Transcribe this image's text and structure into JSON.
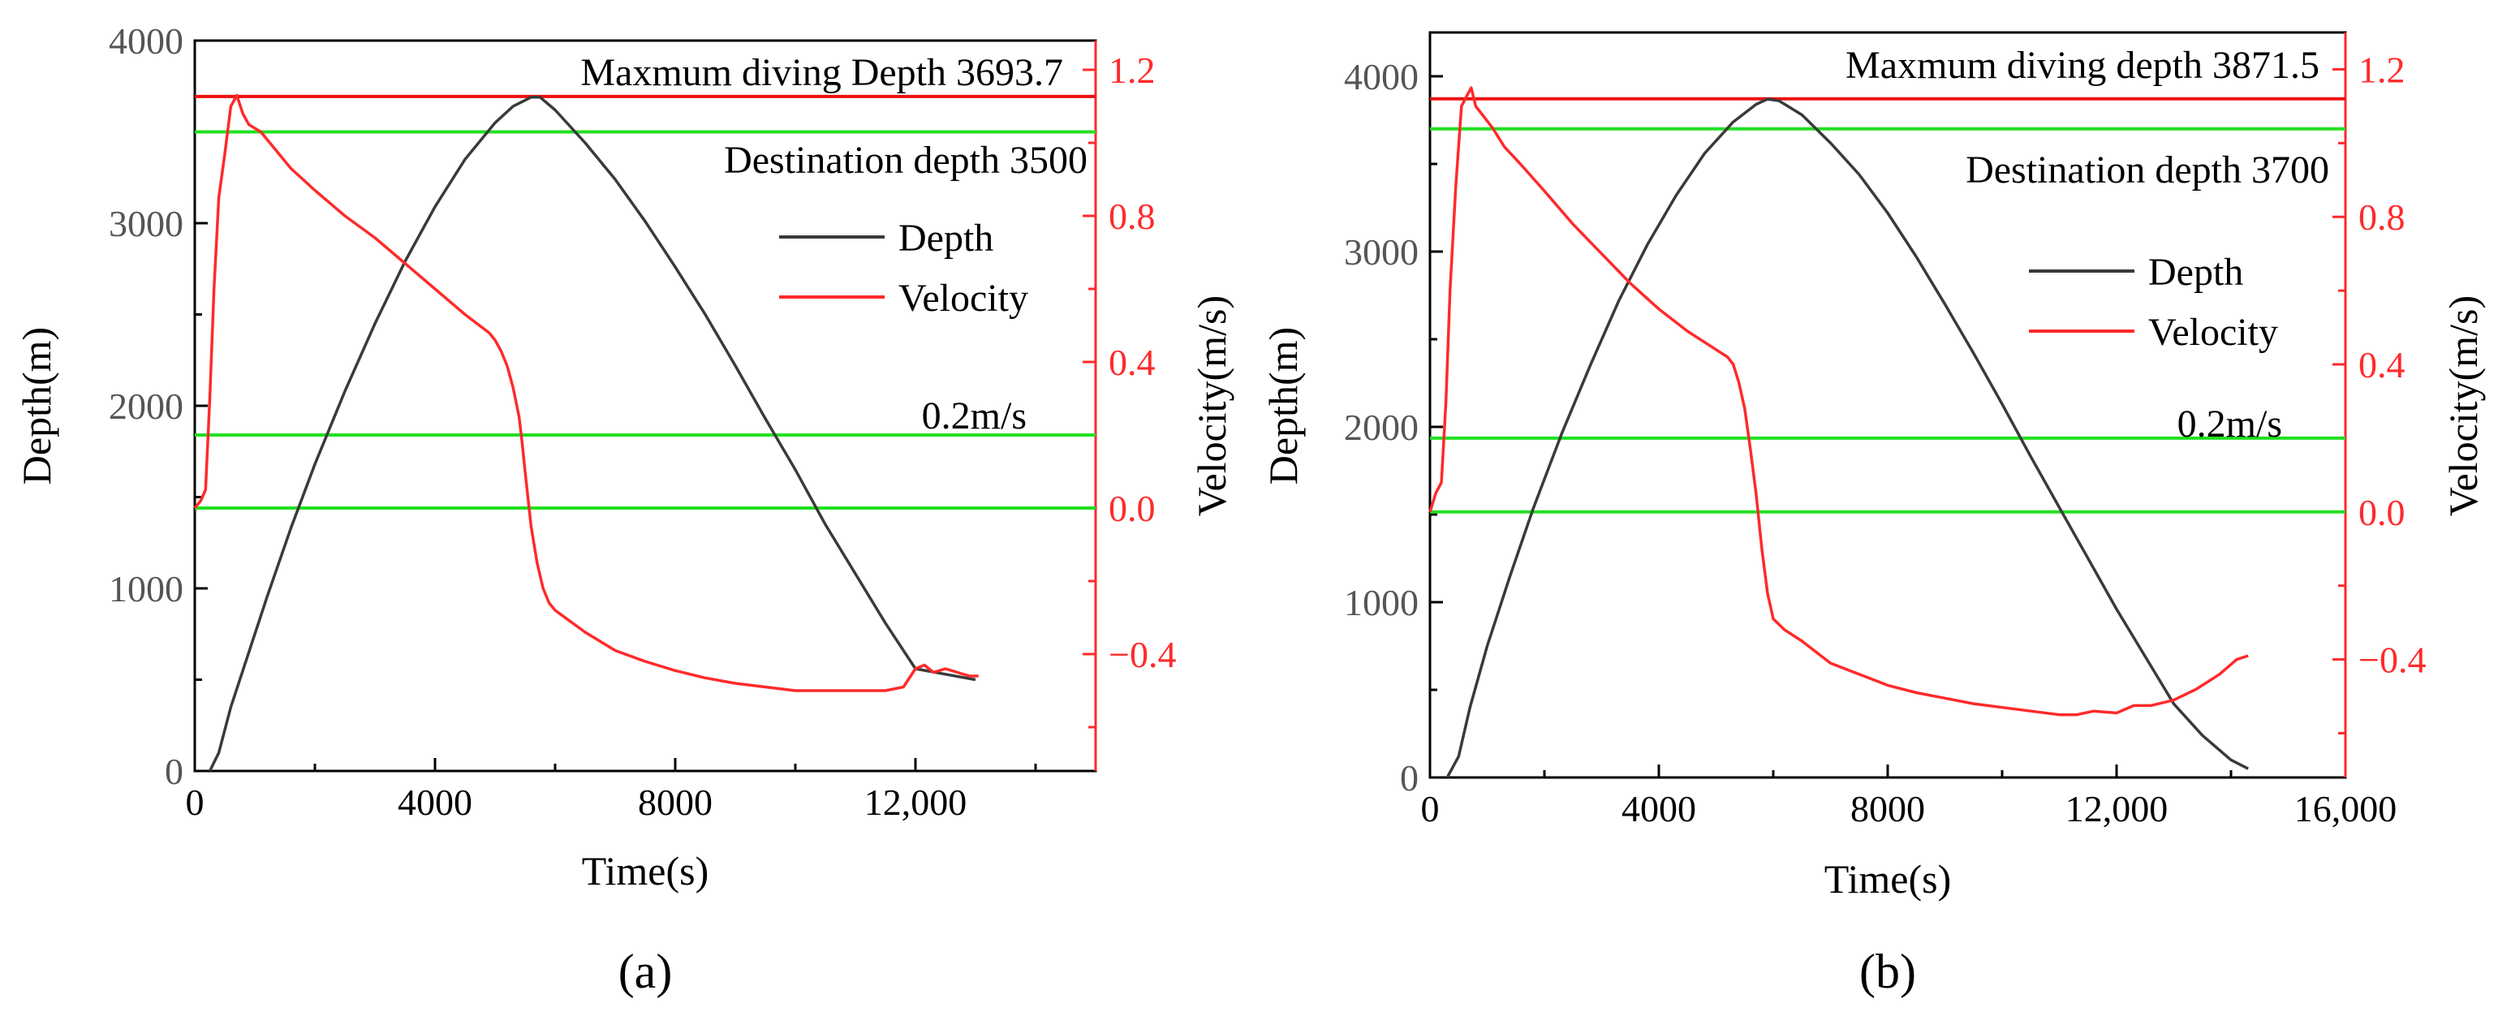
{
  "colors": {
    "depth": "#3a3a3a",
    "velocity": "#ff2a2a",
    "reference": "#22e022",
    "maxline": "#ee1010",
    "axis": "#000000",
    "velocity_axis": "#ff2a2a"
  },
  "chart_data": [
    {
      "type": "line",
      "panel": "(a)",
      "xlabel": "Time(s)",
      "ylabel": "Depth(m)",
      "y2label": "Velocity(m/s)",
      "xlim": [
        0,
        15000
      ],
      "ylim": [
        0,
        4000
      ],
      "y2lim": [
        -0.72,
        1.28
      ],
      "xticks": [
        0,
        4000,
        8000,
        12000
      ],
      "xtick_labels": [
        "0",
        "4000",
        "8000",
        "12,000"
      ],
      "yticks": [
        0,
        1000,
        2000,
        3000,
        4000
      ],
      "ytick_labels": [
        "0",
        "1000",
        "2000",
        "3000",
        "4000"
      ],
      "y2ticks": [
        -0.4,
        0.0,
        0.4,
        0.8,
        1.2
      ],
      "y2tick_labels": [
        "−0.4",
        "0.0",
        "0.4",
        "0.8",
        "1.2"
      ],
      "max_depth": 3693.7,
      "max_depth_label": "Maxmum diving Depth 3693.7",
      "destination_depth": 3500,
      "destination_label": "Destination depth 3500",
      "velocity_ref_lines": [
        0.2,
        0.0
      ],
      "velocity_ref_label": "0.2m/s",
      "legend": [
        "Depth",
        "Velocity"
      ],
      "series": [
        {
          "name": "Depth",
          "axis": "left",
          "x": [
            250,
            400,
            600,
            900,
            1200,
            1600,
            2000,
            2500,
            3000,
            3500,
            4000,
            4500,
            5000,
            5300,
            5600,
            5750,
            6000,
            6500,
            7000,
            7500,
            8000,
            8500,
            9000,
            9500,
            10000,
            10500,
            11000,
            11500,
            12000,
            12500,
            13000
          ],
          "values": [
            0,
            100,
            350,
            650,
            950,
            1330,
            1680,
            2080,
            2450,
            2790,
            3090,
            3350,
            3550,
            3640,
            3690,
            3690,
            3620,
            3440,
            3240,
            3010,
            2760,
            2500,
            2220,
            1930,
            1650,
            1350,
            1080,
            810,
            560,
            530,
            500
          ]
        },
        {
          "name": "Velocity",
          "axis": "right",
          "x": [
            0,
            100,
            180,
            250,
            320,
            400,
            500,
            600,
            700,
            800,
            900,
            1100,
            1300,
            1600,
            2000,
            2500,
            3000,
            3500,
            4000,
            4500,
            4900,
            5000,
            5100,
            5200,
            5300,
            5400,
            5450,
            5500,
            5600,
            5700,
            5800,
            5900,
            6000,
            6500,
            7000,
            7500,
            8000,
            8500,
            9000,
            9500,
            10000,
            10500,
            11000,
            11500,
            11800,
            12000,
            12150,
            12300,
            12500,
            12700,
            12900,
            13050
          ],
          "values": [
            0.0,
            0.02,
            0.05,
            0.3,
            0.6,
            0.85,
            0.97,
            1.1,
            1.13,
            1.08,
            1.05,
            1.03,
            0.99,
            0.93,
            0.87,
            0.8,
            0.74,
            0.67,
            0.6,
            0.53,
            0.48,
            0.46,
            0.43,
            0.39,
            0.33,
            0.25,
            0.18,
            0.1,
            -0.05,
            -0.15,
            -0.22,
            -0.26,
            -0.28,
            -0.34,
            -0.39,
            -0.42,
            -0.445,
            -0.465,
            -0.48,
            -0.49,
            -0.5,
            -0.5,
            -0.5,
            -0.5,
            -0.49,
            -0.44,
            -0.43,
            -0.45,
            -0.44,
            -0.45,
            -0.46,
            -0.46
          ]
        }
      ]
    },
    {
      "type": "line",
      "panel": "(b)",
      "xlabel": "Time(s)",
      "ylabel": "Depth(m)",
      "y2label": "Velocity(m/s)",
      "xlim": [
        0,
        16000
      ],
      "ylim": [
        0,
        4250
      ],
      "y2lim": [
        -0.72,
        1.3
      ],
      "xticks": [
        0,
        4000,
        8000,
        12000,
        16000
      ],
      "xtick_labels": [
        "0",
        "4000",
        "8000",
        "12,000",
        "16,000"
      ],
      "yticks": [
        0,
        1000,
        2000,
        3000,
        4000
      ],
      "ytick_labels": [
        "0",
        "1000",
        "2000",
        "3000",
        "4000"
      ],
      "y2ticks": [
        -0.4,
        0.0,
        0.4,
        0.8,
        1.2
      ],
      "y2tick_labels": [
        "−0.4",
        "0.0",
        "0.4",
        "0.8",
        "1.2"
      ],
      "max_depth": 3871.5,
      "max_depth_label": "Maxmum diving depth 3871.5",
      "destination_depth": 3700,
      "destination_label": "Destination depth 3700",
      "velocity_ref_lines": [
        0.2,
        0.0
      ],
      "velocity_ref_label": "0.2m/s",
      "legend": [
        "Depth",
        "Velocity"
      ],
      "series": [
        {
          "name": "Depth",
          "axis": "left",
          "x": [
            300,
            500,
            700,
            1000,
            1400,
            1800,
            2300,
            2800,
            3300,
            3800,
            4300,
            4800,
            5300,
            5700,
            5900,
            6100,
            6500,
            7000,
            7500,
            8000,
            8500,
            9000,
            9500,
            10000,
            10500,
            11000,
            11500,
            12000,
            12500,
            13000,
            13500,
            14000,
            14300
          ],
          "values": [
            0,
            120,
            400,
            750,
            1150,
            1530,
            1960,
            2350,
            2720,
            3040,
            3320,
            3560,
            3740,
            3840,
            3870,
            3860,
            3780,
            3620,
            3440,
            3220,
            2970,
            2700,
            2420,
            2130,
            1830,
            1540,
            1250,
            960,
            690,
            420,
            240,
            100,
            50
          ]
        },
        {
          "name": "Velocity",
          "axis": "right",
          "x": [
            0,
            100,
            200,
            280,
            350,
            450,
            550,
            650,
            720,
            800,
            900,
            1100,
            1300,
            1600,
            2000,
            2500,
            3000,
            3500,
            4000,
            4500,
            5000,
            5200,
            5300,
            5400,
            5500,
            5600,
            5700,
            5800,
            5900,
            6000,
            6200,
            6500,
            7000,
            7500,
            8000,
            8500,
            9000,
            9500,
            10000,
            10500,
            11000,
            11300,
            11600,
            12000,
            12300,
            12600,
            13000,
            13400,
            13800,
            14100,
            14300
          ],
          "values": [
            0.0,
            0.05,
            0.08,
            0.3,
            0.6,
            0.88,
            1.1,
            1.13,
            1.15,
            1.1,
            1.08,
            1.04,
            0.99,
            0.94,
            0.87,
            0.78,
            0.7,
            0.62,
            0.55,
            0.49,
            0.44,
            0.42,
            0.4,
            0.35,
            0.28,
            0.17,
            0.05,
            -0.1,
            -0.22,
            -0.29,
            -0.32,
            -0.35,
            -0.41,
            -0.44,
            -0.47,
            -0.49,
            -0.505,
            -0.52,
            -0.53,
            -0.54,
            -0.55,
            -0.55,
            -0.54,
            -0.545,
            -0.525,
            -0.525,
            -0.51,
            -0.48,
            -0.44,
            -0.4,
            -0.39
          ]
        }
      ]
    }
  ]
}
